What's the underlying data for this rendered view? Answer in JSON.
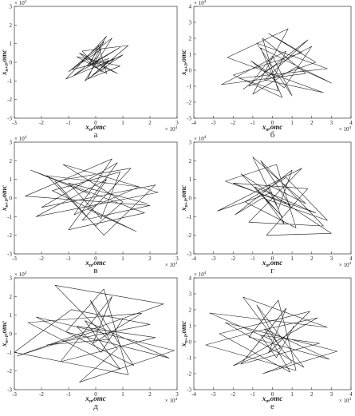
{
  "chart_data": [
    {
      "type": "line",
      "caption": "а",
      "xlabel": {
        "base": "x",
        "sub": "n",
        "unit": ",отс"
      },
      "ylabel": {
        "base": "x",
        "sub": "n+1",
        "unit": ",отс"
      },
      "x_multiplier": {
        "base": "× 10",
        "exp": "4"
      },
      "y_multiplier": {
        "base": "× 10",
        "exp": "4"
      },
      "color": "#1a1a1a",
      "x": [
        0.1,
        -0.8,
        0.9,
        -0.3,
        0.4,
        -1.1,
        0.7,
        0.2,
        -0.5,
        1.2,
        -0.2,
        0.5,
        -0.9,
        0.3,
        -0.1,
        0.8,
        -0.6,
        0.0,
        1.0,
        -0.4,
        0.6,
        -1.0,
        0.2,
        -0.3,
        0.9,
        -0.7,
        0.4,
        0.1,
        -0.2,
        0.5
      ],
      "values": [
        0.3,
        -0.7,
        0.8,
        -0.2,
        1.4,
        -0.9,
        0.2,
        -0.5,
        0.6,
        0.9,
        -0.8,
        0.1,
        -0.4,
        1.1,
        0.0,
        -0.6,
        0.5,
        -0.3,
        0.4,
        -1.0,
        1.3,
        -0.5,
        0.7,
        -0.9,
        -0.2,
        0.3,
        -0.6,
        0.9,
        -0.1,
        0.2
      ],
      "xlim": [
        -3,
        3
      ],
      "ylim": [
        -3,
        3
      ],
      "xticks": [
        -3,
        -2,
        -1,
        0,
        1,
        2,
        3
      ],
      "yticks": [
        -3,
        -2,
        -1,
        0,
        1,
        2,
        3
      ]
    },
    {
      "type": "line",
      "caption": "б",
      "xlabel": {
        "base": "x",
        "sub": "n",
        "unit": ",отс"
      },
      "ylabel": {
        "base": "x",
        "sub": "n+1",
        "unit": ",отс"
      },
      "x_multiplier": {
        "base": "× 10",
        "exp": "4"
      },
      "y_multiplier": {
        "base": "× 10",
        "exp": "4"
      },
      "color": "#1a1a1a",
      "x": [
        0.2,
        -1.5,
        1.8,
        -0.4,
        2.6,
        -2.3,
        0.8,
        -1.0,
        1.2,
        3.0,
        -0.6,
        0.5,
        -2.0,
        1.5,
        -0.2,
        2.2,
        -1.2,
        0.0,
        1.0,
        -0.8,
        2.8,
        -1.7,
        0.3,
        -0.5,
        1.7,
        -2.6,
        0.7,
        0.1,
        -1.1,
        0.6,
        2.0,
        -0.3
      ],
      "values": [
        0.4,
        -1.2,
        1.9,
        -0.6,
        -1.4,
        0.8,
        2.6,
        -1.5,
        0.2,
        -0.8,
        1.4,
        -1.7,
        -0.3,
        1.1,
        2.3,
        0.5,
        -1.0,
        0.9,
        -1.6,
        1.7,
        0.1,
        -0.5,
        -1.3,
        2.0,
        -0.2,
        -0.9,
        1.2,
        -0.4,
        0.6,
        -1.1,
        1.5,
        0.0
      ],
      "xlim": [
        -4,
        4
      ],
      "ylim": [
        -3,
        4
      ],
      "xticks": [
        -4,
        -3,
        -2,
        -1,
        0,
        1,
        2,
        3,
        4
      ],
      "yticks": [
        -3,
        -2,
        -1,
        0,
        1,
        2,
        3,
        4
      ]
    },
    {
      "type": "line",
      "caption": "в",
      "xlabel": {
        "base": "x",
        "sub": "n",
        "unit": ",отс"
      },
      "ylabel": {
        "base": "x",
        "sub": "n+1",
        "unit": ",отс"
      },
      "x_multiplier": {
        "base": "× 10",
        "exp": "4"
      },
      "y_multiplier": {
        "base": "× 10",
        "exp": "4"
      },
      "color": "#1a1a1a",
      "x": [
        -0.2,
        -2.4,
        1.8,
        -1.0,
        0.8,
        -2.0,
        2.2,
        0.3,
        -1.5,
        1.3,
        -0.5,
        2.0,
        -2.6,
        0.6,
        -0.8,
        1.6,
        -1.8,
        0.0,
        1.0,
        -1.2,
        2.3,
        -2.2,
        0.4,
        -0.3,
        1.5,
        -1.6,
        0.9,
        0.2,
        -1.0,
        1.9
      ],
      "values": [
        0.2,
        1.5,
        -0.8,
        -1.7,
        1.9,
        -0.5,
        0.7,
        -2.0,
        0.9,
        1.6,
        -1.2,
        -0.4,
        0.1,
        2.1,
        -0.9,
        0.6,
        1.2,
        -1.5,
        -0.2,
        1.8,
        0.3,
        -1.0,
        1.0,
        -0.6,
        -1.8,
        0.4,
        1.4,
        -1.1,
        0.8,
        -0.3
      ],
      "xlim": [
        -3,
        3
      ],
      "ylim": [
        -3,
        3
      ],
      "xticks": [
        -3,
        -2,
        -1,
        0,
        1,
        2,
        3
      ],
      "yticks": [
        -3,
        -2,
        -1,
        0,
        1,
        2,
        3
      ]
    },
    {
      "type": "line",
      "caption": "г",
      "xlabel": {
        "base": "x",
        "sub": "n",
        "unit": ",отс"
      },
      "ylabel": {
        "base": "x",
        "sub": "n+1",
        "unit": ",отс"
      },
      "x_multiplier": {
        "base": "× 10",
        "exp": "4"
      },
      "y_multiplier": {
        "base": "× 10",
        "exp": "4"
      },
      "color": "#1a1a1a",
      "x": [
        0.0,
        -2.8,
        1.5,
        -1.2,
        2.6,
        -0.6,
        0.9,
        -2.0,
        1.8,
        -0.3,
        3.0,
        -1.6,
        0.5,
        -0.9,
        2.2,
        -2.4,
        0.2,
        1.2,
        -1.4,
        0.7,
        2.8,
        -0.5,
        -1.9,
        1.0,
        0.3,
        -1.0,
        1.7,
        -0.2,
        0.6,
        -0.7
      ],
      "values": [
        0.3,
        -0.7,
        1.6,
        -1.3,
        -1.5,
        2.0,
        -0.4,
        0.8,
        0.5,
        -2.0,
        -1.9,
        1.3,
        -1.0,
        0.6,
        -0.8,
        0.9,
        1.8,
        -1.6,
        -0.2,
        1.1,
        -1.2,
        0.0,
        -0.9,
        1.5,
        -0.6,
        2.2,
        -0.3,
        0.7,
        -1.4,
        0.4
      ],
      "xlim": [
        -4,
        4
      ],
      "ylim": [
        -3,
        3
      ],
      "xticks": [
        -4,
        -3,
        -2,
        -1,
        0,
        1,
        2,
        3,
        4
      ],
      "yticks": [
        -3,
        -2,
        -1,
        0,
        1,
        2,
        3
      ]
    },
    {
      "type": "line",
      "caption": "д",
      "xlabel": {
        "base": "x",
        "sub": "n",
        "unit": ",отс"
      },
      "ylabel": {
        "base": "x",
        "sub": "n+1",
        "unit": ",отс"
      },
      "x_multiplier": {
        "base": "× 10",
        "exp": "4"
      },
      "y_multiplier": {
        "base": "× 10",
        "exp": "4"
      },
      "color": "#1a1a1a",
      "x": [
        0.1,
        -2.9,
        2.5,
        -1.5,
        0.8,
        -0.6,
        2.9,
        -2.2,
        1.4,
        -0.2,
        0.5,
        -1.8,
        2.0,
        -0.9,
        -3.0,
        1.2,
        0.3,
        -1.1,
        2.7,
        -0.4,
        0.9,
        -2.5,
        1.7,
        -0.1,
        0.6,
        -1.3,
        2.2,
        -0.7,
        0.2,
        1.0
      ],
      "values": [
        0.2,
        -1.2,
        1.6,
        2.6,
        -0.8,
        -2.6,
        -0.9,
        0.9,
        -1.7,
        1.8,
        -0.3,
        -0.6,
        0.5,
        1.3,
        -1.0,
        -2.2,
        2.4,
        0.1,
        -1.3,
        0.7,
        -1.9,
        0.6,
        1.1,
        -0.5,
        2.0,
        -1.5,
        -0.2,
        0.4,
        -1.0,
        0.8
      ],
      "xlim": [
        -3,
        3
      ],
      "ylim": [
        -3,
        3
      ],
      "xticks": [
        -3,
        -2,
        -1,
        0,
        1,
        2,
        3
      ],
      "yticks": [
        -3,
        -2,
        -1,
        0,
        1,
        2,
        3
      ]
    },
    {
      "type": "line",
      "caption": "е",
      "xlabel": {
        "base": "x",
        "sub": "n",
        "unit": ",отс"
      },
      "ylabel": {
        "base": "x",
        "sub": "n+1",
        "unit": ",отс"
      },
      "x_multiplier": {
        "base": "× 10",
        "exp": "4"
      },
      "y_multiplier": {
        "base": "× 10",
        "exp": "4"
      },
      "color": "#1a1a1a",
      "x": [
        0.0,
        -3.2,
        2.8,
        -1.5,
        1.0,
        -0.5,
        3.3,
        -2.4,
        1.6,
        -0.8,
        0.4,
        -2.0,
        2.3,
        -1.0,
        -3.4,
        1.2,
        0.3,
        -1.2,
        2.9,
        -0.4,
        0.9,
        -2.7,
        1.9,
        -0.2,
        0.7,
        -1.6,
        2.4,
        -0.6,
        0.2,
        1.1
      ],
      "values": [
        0.1,
        1.8,
        0.9,
        2.8,
        -1.3,
        -2.0,
        -0.6,
        1.2,
        -1.6,
        2.3,
        -0.4,
        -1.5,
        1.5,
        0.6,
        -0.2,
        -1.8,
        2.6,
        0.3,
        -1.1,
        0.8,
        -1.9,
        0.5,
        1.9,
        -0.7,
        2.1,
        -1.4,
        -0.1,
        0.4,
        -1.0,
        1.0
      ],
      "xlim": [
        -4,
        4
      ],
      "ylim": [
        -3,
        4
      ],
      "xticks": [
        -4,
        -3,
        -2,
        -1,
        0,
        1,
        2,
        3,
        4
      ],
      "yticks": [
        -3,
        -2,
        -1,
        0,
        1,
        2,
        3,
        4
      ]
    }
  ]
}
